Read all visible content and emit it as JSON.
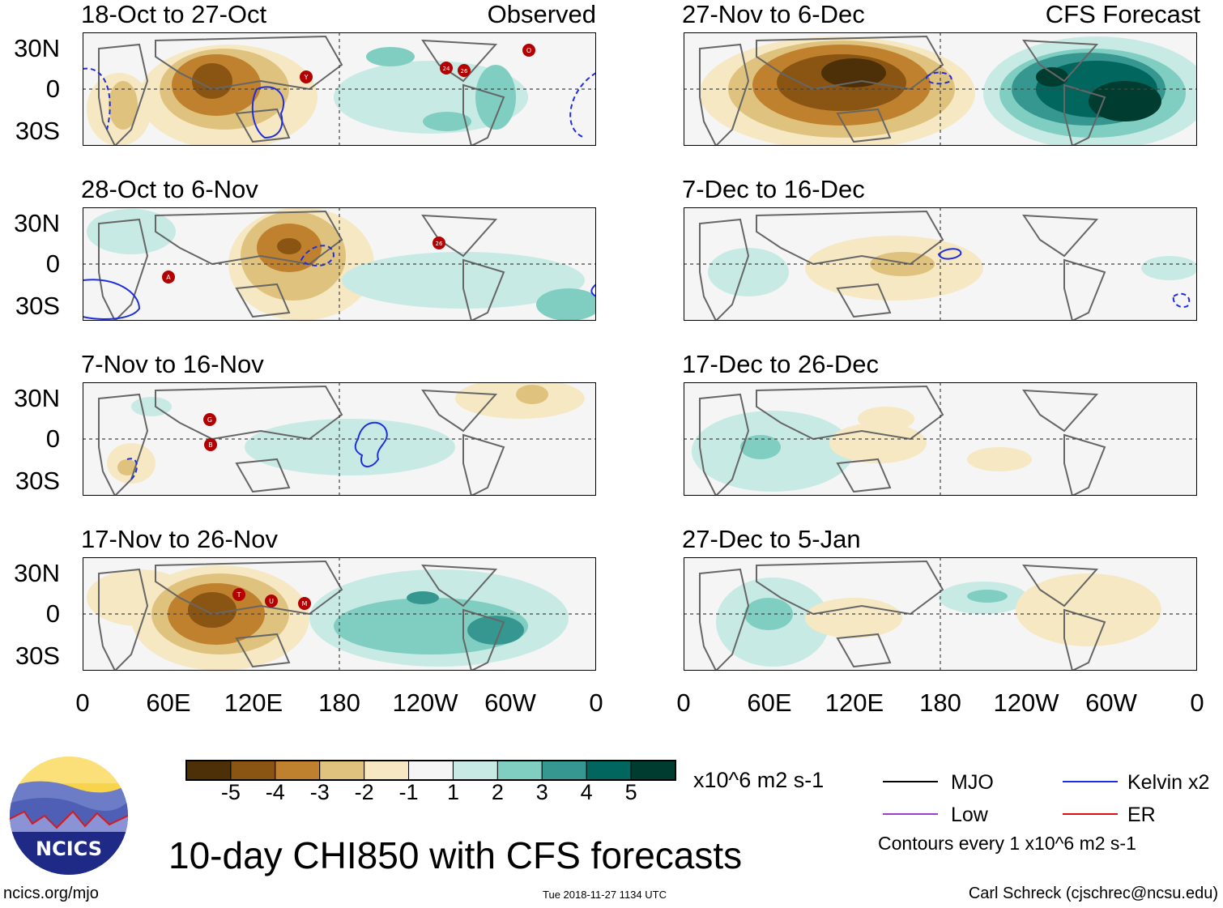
{
  "panels": {
    "obs_1": {
      "title": "18-Oct to 27-Oct",
      "note": "Observed"
    },
    "obs_2": {
      "title": "28-Oct to 6-Nov",
      "note": ""
    },
    "obs_3": {
      "title": "7-Nov to 16-Nov",
      "note": ""
    },
    "obs_4": {
      "title": "17-Nov to 26-Nov",
      "note": ""
    },
    "fc_1": {
      "title": "27-Nov to 6-Dec",
      "note": "CFS Forecast"
    },
    "fc_2": {
      "title": "7-Dec to 16-Dec",
      "note": ""
    },
    "fc_3": {
      "title": "17-Dec to 26-Dec",
      "note": ""
    },
    "fc_4": {
      "title": "27-Dec to 5-Jan",
      "note": ""
    }
  },
  "lat_labels": [
    "30N",
    "0",
    "30S"
  ],
  "lon_labels": [
    "0",
    "60E",
    "120E",
    "180",
    "120W",
    "60W",
    "0"
  ],
  "colorbar": {
    "ticks": [
      "-5",
      "-4",
      "-3",
      "-2",
      "-1",
      "1",
      "2",
      "3",
      "4",
      "5"
    ],
    "colors": [
      "#4d3008",
      "#8a5512",
      "#bf812d",
      "#dfc27d",
      "#f6e8c3",
      "#f5f5f5",
      "#c7eae5",
      "#80cdc1",
      "#35978f",
      "#01665e",
      "#003c30"
    ],
    "units": "x10^6 m2 s-1"
  },
  "legend": {
    "items": [
      {
        "label": "MJO",
        "color": "#000000"
      },
      {
        "label": "Kelvin x2",
        "color": "#1f2ee0"
      },
      {
        "label": "Low",
        "color": "#9b3fd0"
      },
      {
        "label": "ER",
        "color": "#e01010"
      }
    ],
    "contour_note": "Contours every 1 x10^6 m2 s-1"
  },
  "title": "10-day CHI850 with CFS forecasts",
  "logo_text": "NCICS",
  "url": "ncics.org/mjo",
  "timestamp": "Tue 2018-11-27 1134 UTC",
  "credit": "Carl Schreck (cjschrec@ncsu.edu)",
  "storms": {
    "obs_1": [
      "Y",
      "24",
      "26",
      "O"
    ],
    "obs_2": [
      "A",
      "26"
    ],
    "obs_3": [
      "G",
      "B"
    ],
    "obs_4": [
      "T",
      "U",
      "M"
    ]
  }
}
